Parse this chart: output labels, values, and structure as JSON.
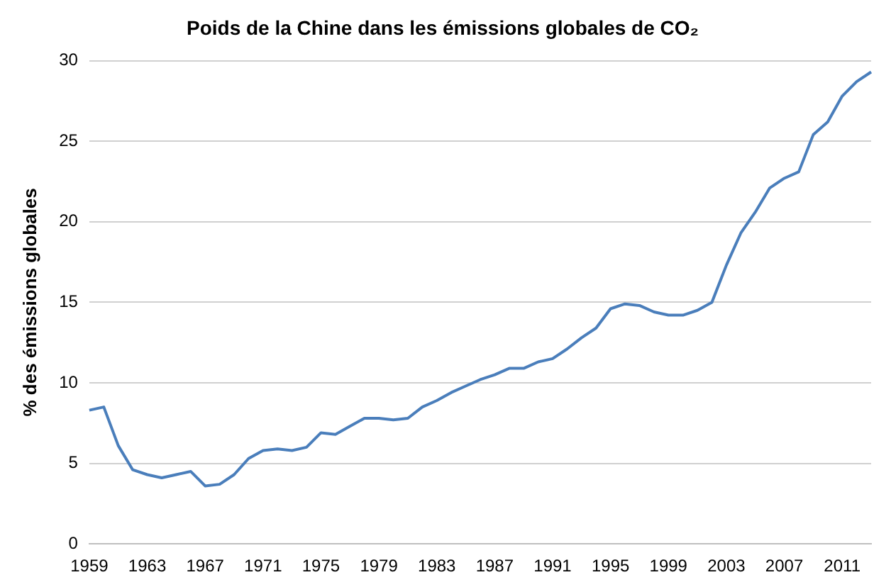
{
  "chart_data": {
    "type": "line",
    "title": "Poids de la Chine dans les émissions globales de CO₂",
    "ylabel": "% des émissions globales",
    "categories": [
      "1959",
      null,
      null,
      null,
      "1963",
      null,
      null,
      null,
      "1967",
      null,
      null,
      null,
      "1971",
      null,
      null,
      null,
      "1975",
      null,
      null,
      null,
      "1979",
      null,
      null,
      null,
      "1983",
      null,
      null,
      null,
      "1987",
      null,
      null,
      null,
      "1991",
      null,
      null,
      null,
      "1995",
      null,
      null,
      null,
      "1999",
      null,
      null,
      null,
      "2003",
      null,
      null,
      null,
      "2007",
      null,
      null,
      null,
      "2011",
      null,
      null
    ],
    "series": [
      {
        "color": "#4a7ebb",
        "values": [
          8.3,
          8.5,
          6.1,
          4.6,
          4.3,
          4.1,
          4.3,
          4.5,
          3.6,
          3.7,
          4.3,
          5.3,
          5.8,
          5.9,
          5.8,
          6.0,
          6.9,
          6.8,
          7.3,
          7.8,
          7.8,
          7.7,
          7.8,
          8.5,
          8.9,
          9.4,
          9.8,
          10.2,
          10.5,
          10.9,
          10.9,
          11.3,
          11.5,
          12.1,
          12.8,
          13.4,
          14.6,
          14.9,
          14.8,
          14.4,
          14.2,
          14.2,
          14.5,
          15.0,
          17.3,
          19.3,
          20.6,
          22.1,
          22.7,
          23.1,
          25.4,
          26.2,
          27.8,
          28.7,
          29.3
        ]
      }
    ],
    "ylim": [
      0,
      30
    ],
    "yticks": [
      0,
      5,
      10,
      15,
      20,
      25,
      30
    ],
    "grid": "y",
    "legend": false,
    "marker": "none",
    "line_style": "solid"
  }
}
